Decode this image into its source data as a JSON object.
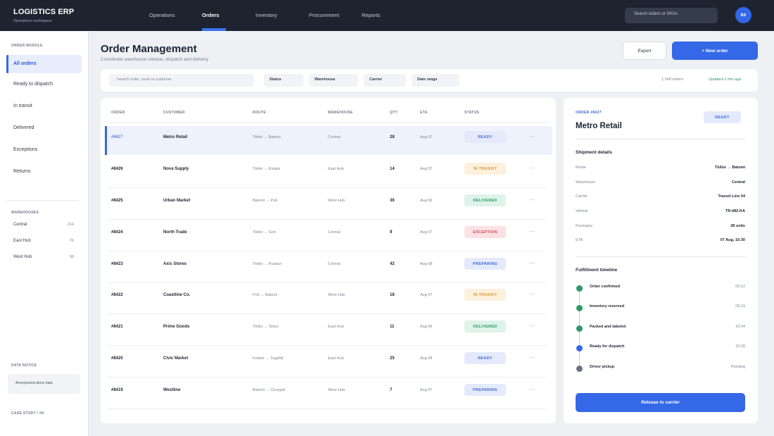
{
  "topbar": {
    "app_title": "LOGISTICS ERP",
    "app_subtitle": "Operations workspace",
    "nav": [
      "Operations",
      "Orders",
      "Inventory",
      "Procurement",
      "Reports"
    ],
    "active_nav": "Orders",
    "search_placeholder": "Search orders or SKUs",
    "avatar_initials": "BS"
  },
  "sidebar": {
    "module_heading": "ORDER MODULE",
    "items": [
      "All orders",
      "Ready to dispatch",
      "In transit",
      "Delivered",
      "Exceptions",
      "Returns"
    ],
    "active_item": "All orders",
    "warehouses_heading": "WAREHOUSES",
    "warehouses": [
      {
        "name": "Central",
        "count": "214"
      },
      {
        "name": "East Hub",
        "count": "76"
      },
      {
        "name": "West Hub",
        "count": "58"
      }
    ],
    "notice_heading": "DATA NOTICE",
    "notice_text": "Anonymized demo data",
    "case_study": "CASE STUDY / 04"
  },
  "header": {
    "title": "Order Management",
    "subtitle": "Coordinate warehouse release, dispatch and delivery",
    "export_label": "Export",
    "new_order_label": "+ New order"
  },
  "filters": {
    "search_placeholder": "Search order, route or customer",
    "chips": [
      "Status",
      "Warehouse",
      "Carrier",
      "Date range"
    ],
    "order_count": "1,248 orders",
    "updated": "Updated 2 min ago"
  },
  "table": {
    "columns": [
      "ORDER",
      "CUSTOMER",
      "ROUTE",
      "WAREHOUSE",
      "QTY",
      "ETA",
      "STATUS"
    ],
    "rows": [
      {
        "id": "#8427",
        "customer": "Metro Retail",
        "route": "Tbilisi → Batumi",
        "warehouse": "Central",
        "qty": "28",
        "eta": "Aug 07",
        "status": "READY"
      },
      {
        "id": "#8426",
        "customer": "Nova Supply",
        "route": "Tbilisi → Kutaisi",
        "warehouse": "East Hub",
        "qty": "14",
        "eta": "Aug 07",
        "status": "IN TRANSIT"
      },
      {
        "id": "#8425",
        "customer": "Urban Market",
        "route": "Batumi → Poti",
        "warehouse": "West Hub",
        "qty": "36",
        "eta": "Aug 06",
        "status": "DELIVERED"
      },
      {
        "id": "#8424",
        "customer": "North Trade",
        "route": "Tbilisi → Gori",
        "warehouse": "Central",
        "qty": "9",
        "eta": "Aug 07",
        "status": "EXCEPTION"
      },
      {
        "id": "#8423",
        "customer": "Axis Stores",
        "route": "Tbilisi → Rustavi",
        "warehouse": "Central",
        "qty": "42",
        "eta": "Aug 08",
        "status": "PREPARING"
      },
      {
        "id": "#8422",
        "customer": "Coastline Co.",
        "route": "Poti → Batumi",
        "warehouse": "West Hub",
        "qty": "18",
        "eta": "Aug 07",
        "status": "IN TRANSIT"
      },
      {
        "id": "#8421",
        "customer": "Prime Goods",
        "route": "Tbilisi → Telavi",
        "warehouse": "East Hub",
        "qty": "11",
        "eta": "Aug 06",
        "status": "DELIVERED"
      },
      {
        "id": "#8420",
        "customer": "Civic Market",
        "route": "Kutaisi → Zugdidi",
        "warehouse": "East Hub",
        "qty": "25",
        "eta": "Aug 08",
        "status": "READY"
      },
      {
        "id": "#8419",
        "customer": "Westline",
        "route": "Batumi → Ozurgeti",
        "warehouse": "West Hub",
        "qty": "7",
        "eta": "Aug 07",
        "status": "PREPARING"
      }
    ],
    "more_glyph": "···"
  },
  "detail": {
    "order_label": "ORDER #8427",
    "customer": "Metro Retail",
    "status": "READY",
    "shipment_heading": "Shipment details",
    "fields": [
      {
        "key": "Route",
        "value": "Tbilisi → Batumi"
      },
      {
        "key": "Warehouse",
        "value": "Central"
      },
      {
        "key": "Carrier",
        "value": "Transit Line 04"
      },
      {
        "key": "Vehicle",
        "value": "TR-482-KA"
      },
      {
        "key": "Packages",
        "value": "28 units"
      },
      {
        "key": "ETA",
        "value": "07 Aug, 16:30"
      }
    ],
    "timeline_heading": "Fulfillment timeline",
    "timeline": [
      {
        "label": "Order confirmed",
        "time": "09:12",
        "state": "done",
        "color": "#2a9a69"
      },
      {
        "label": "Inventory reserved",
        "time": "09:19",
        "state": "done",
        "color": "#2a9a69"
      },
      {
        "label": "Packed and labeled",
        "time": "10:04",
        "state": "done",
        "color": "#2a9a69"
      },
      {
        "label": "Ready for dispatch",
        "time": "10:28",
        "state": "current",
        "color": "#3468e7"
      },
      {
        "label": "Driver pickup",
        "time": "Pending",
        "state": "pending",
        "color": "#6b7280"
      }
    ],
    "release_label": "Release to carrier"
  }
}
